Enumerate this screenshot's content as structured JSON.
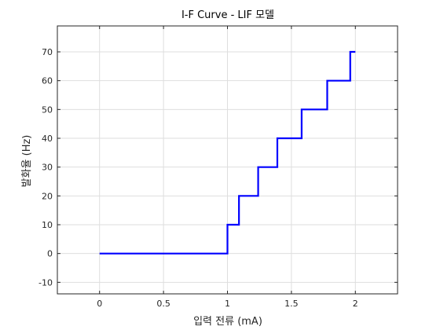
{
  "chart_data": {
    "type": "line",
    "title": "I-F Curve - LIF 모델",
    "xlabel": "입력 전류 (mA)",
    "ylabel": "발화율 (Hz)",
    "xlim": [
      -0.33,
      2.33
    ],
    "ylim": [
      -14,
      79
    ],
    "xticks": [
      0,
      0.5,
      1,
      1.5,
      2
    ],
    "xtick_labels": [
      "0",
      "0.5",
      "1",
      "1.5",
      "2"
    ],
    "yticks": [
      -10,
      0,
      10,
      20,
      30,
      40,
      50,
      60,
      70
    ],
    "ytick_labels": [
      "-10",
      "0",
      "10",
      "20",
      "30",
      "40",
      "50",
      "60",
      "70"
    ],
    "grid": true,
    "series": [
      {
        "color": "#0000ff",
        "x": [
          0,
          1.0,
          1.0,
          1.09,
          1.09,
          1.24,
          1.24,
          1.39,
          1.39,
          1.58,
          1.58,
          1.78,
          1.78,
          1.96,
          1.96,
          2.0
        ],
        "y": [
          0,
          0,
          10,
          10,
          20,
          20,
          30,
          30,
          40,
          40,
          50,
          50,
          60,
          60,
          70,
          70
        ]
      }
    ]
  }
}
